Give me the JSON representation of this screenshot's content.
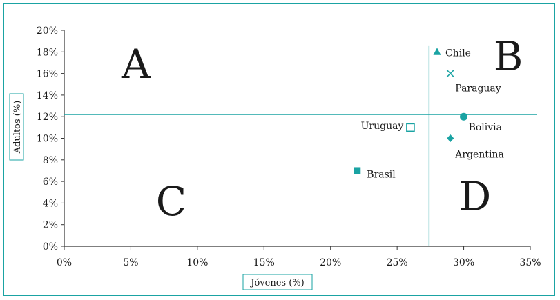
{
  "colors": {
    "accent": "#1aa3a3",
    "axis": "#333333",
    "text": "#1a1a1a"
  },
  "chart_data": {
    "type": "scatter",
    "title": "",
    "xlabel": "Jóvenes (%)",
    "ylabel": "Adultos (%)",
    "xlim": [
      0,
      35
    ],
    "ylim": [
      0,
      20
    ],
    "x_ticks": [
      "0%",
      "5%",
      "10%",
      "15%",
      "20%",
      "25%",
      "30%",
      "35%"
    ],
    "y_ticks": [
      "0%",
      "2%",
      "4%",
      "6%",
      "8%",
      "10%",
      "12%",
      "14%",
      "16%",
      "18%",
      "20%"
    ],
    "grid": false,
    "points": [
      {
        "label": "Chile",
        "x": 28,
        "y": 18,
        "marker": "triangle"
      },
      {
        "label": "Paraguay",
        "x": 29,
        "y": 16,
        "marker": "cross"
      },
      {
        "label": "Bolivia",
        "x": 30,
        "y": 12,
        "marker": "circle"
      },
      {
        "label": "Argentina",
        "x": 29,
        "y": 10,
        "marker": "diamond"
      },
      {
        "label": "Uruguay",
        "x": 26,
        "y": 11,
        "marker": "open-square"
      },
      {
        "label": "Brasil",
        "x": 22,
        "y": 7,
        "marker": "square"
      }
    ],
    "reference_lines": {
      "x": 27.4,
      "y": 12.2
    },
    "quadrants": [
      "A",
      "B",
      "C",
      "D"
    ]
  }
}
